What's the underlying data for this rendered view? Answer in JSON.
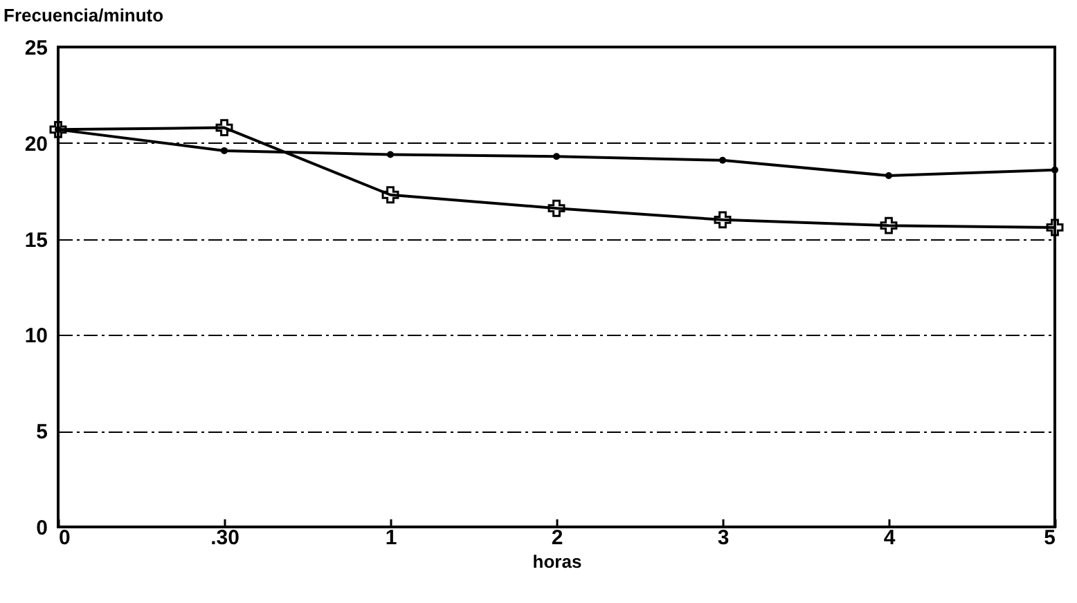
{
  "chart_data": {
    "type": "line",
    "xlabel": "horas",
    "ylabel": "Frecuencia/minuto",
    "categories": [
      "0",
      ".30",
      "1",
      "2",
      "3",
      "4",
      "5"
    ],
    "series": [
      {
        "color": "#000000",
        "marker": "circle",
        "values": [
          20.7,
          19.6,
          19.4,
          19.3,
          19.1,
          18.3,
          18.6
        ]
      },
      {
        "color": "#000000",
        "marker": "cross",
        "values": [
          20.7,
          20.8,
          17.3,
          16.6,
          16.0,
          15.7,
          15.6
        ]
      }
    ],
    "ylim": [
      0,
      25
    ],
    "yticks": [
      0,
      5,
      10,
      15,
      20,
      25
    ],
    "grid": "y",
    "line_style": "solid"
  }
}
